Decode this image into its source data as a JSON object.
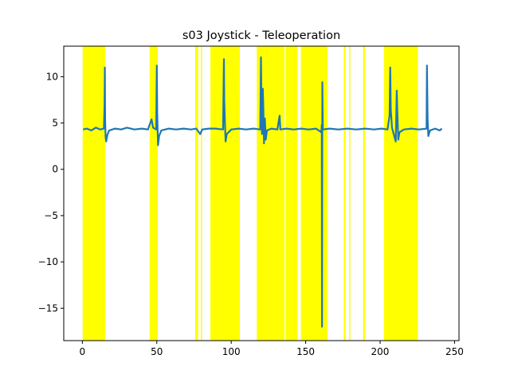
{
  "chart_data": {
    "type": "line",
    "title": "s03 Joystick - Teleoperation",
    "xlabel": "",
    "ylabel": "",
    "xlim": [
      -12.5,
      253
    ],
    "ylim": [
      -18.5,
      13.3
    ],
    "x_ticks": [
      0,
      50,
      100,
      150,
      200,
      250
    ],
    "x_tick_labels": [
      "0",
      "50",
      "100",
      "150",
      "200",
      "250"
    ],
    "y_ticks": [
      10,
      5,
      0,
      -5,
      -10,
      -15
    ],
    "y_tick_labels": [
      "10",
      "5",
      "0",
      "−10",
      "−15"
    ],
    "y_tick_labels_full": [
      "10",
      "5",
      "0",
      "−5",
      "−10",
      "−15"
    ],
    "grid": false,
    "highlight_color": "#ffff00",
    "line_color": "#1f77b4",
    "highlighted_intervals": [
      [
        0.2,
        15.3
      ],
      [
        45.2,
        50.6
      ],
      [
        75.8,
        77.8
      ],
      [
        79.6,
        80.4
      ],
      [
        86.0,
        105.8
      ],
      [
        117.2,
        135.8
      ],
      [
        136.6,
        144.6
      ],
      [
        146.8,
        164.6
      ],
      [
        175.6,
        176.8
      ],
      [
        179.2,
        180.0
      ],
      [
        188.6,
        189.8
      ],
      [
        202.6,
        225.4
      ]
    ],
    "series": [
      {
        "values": [
          [
            0.5,
            4.3
          ],
          [
            3,
            4.4
          ],
          [
            6,
            4.2
          ],
          [
            9,
            4.5
          ],
          [
            12,
            4.3
          ],
          [
            14.5,
            4.4
          ],
          [
            14.9,
            7.0
          ],
          [
            15.1,
            11.0
          ],
          [
            15.3,
            5.5
          ],
          [
            15.6,
            3.5
          ],
          [
            16.0,
            3.0
          ],
          [
            16.8,
            3.7
          ],
          [
            18,
            4.2
          ],
          [
            22,
            4.4
          ],
          [
            26,
            4.3
          ],
          [
            30,
            4.5
          ],
          [
            35,
            4.3
          ],
          [
            40,
            4.4
          ],
          [
            44,
            4.3
          ],
          [
            46.5,
            5.4
          ],
          [
            47.5,
            4.5
          ],
          [
            49.6,
            4.3
          ],
          [
            50.0,
            11.2
          ],
          [
            50.3,
            6.0
          ],
          [
            50.8,
            2.6
          ],
          [
            51.6,
            3.6
          ],
          [
            53,
            4.2
          ],
          [
            58,
            4.4
          ],
          [
            63,
            4.3
          ],
          [
            68,
            4.4
          ],
          [
            73,
            4.3
          ],
          [
            76.5,
            4.4
          ],
          [
            79.2,
            3.8
          ],
          [
            80.5,
            4.3
          ],
          [
            85,
            4.4
          ],
          [
            89.5,
            4.4
          ],
          [
            94.5,
            4.3
          ],
          [
            94.9,
            9.0
          ],
          [
            95.1,
            11.9
          ],
          [
            95.3,
            7.5
          ],
          [
            95.8,
            5.0
          ],
          [
            96.2,
            3.0
          ],
          [
            97,
            3.8
          ],
          [
            100,
            4.3
          ],
          [
            105,
            4.4
          ],
          [
            110,
            4.3
          ],
          [
            115,
            4.4
          ],
          [
            119.5,
            4.3
          ],
          [
            120.0,
            12.1
          ],
          [
            120.3,
            7.0
          ],
          [
            120.7,
            3.8
          ],
          [
            121.2,
            8.7
          ],
          [
            121.6,
            6.5
          ],
          [
            122.0,
            2.8
          ],
          [
            122.6,
            5.5
          ],
          [
            123.2,
            3.2
          ],
          [
            124,
            4.2
          ],
          [
            127,
            4.4
          ],
          [
            131,
            4.3
          ],
          [
            132.5,
            5.8
          ],
          [
            133,
            4.3
          ],
          [
            137,
            4.4
          ],
          [
            142,
            4.3
          ],
          [
            147,
            4.4
          ],
          [
            152,
            4.3
          ],
          [
            157,
            4.4
          ],
          [
            160.5,
            4.0
          ],
          [
            160.8,
            4.8
          ],
          [
            161.0,
            -17.0
          ],
          [
            161.2,
            9.4
          ],
          [
            161.5,
            4.3
          ],
          [
            166,
            4.4
          ],
          [
            172,
            4.3
          ],
          [
            178,
            4.4
          ],
          [
            184,
            4.3
          ],
          [
            190,
            4.4
          ],
          [
            196,
            4.3
          ],
          [
            201,
            4.4
          ],
          [
            205,
            4.3
          ],
          [
            206.4,
            5.8
          ],
          [
            206.8,
            11.0
          ],
          [
            207.2,
            6.5
          ],
          [
            208,
            4.5
          ],
          [
            210.5,
            3.0
          ],
          [
            211.2,
            8.5
          ],
          [
            211.6,
            6.0
          ],
          [
            212.2,
            3.2
          ],
          [
            213,
            4.0
          ],
          [
            216,
            4.3
          ],
          [
            221,
            4.4
          ],
          [
            226,
            4.3
          ],
          [
            231.2,
            4.4
          ],
          [
            231.5,
            11.2
          ],
          [
            231.9,
            5.5
          ],
          [
            232.4,
            3.6
          ],
          [
            233.5,
            4.2
          ],
          [
            237,
            4.4
          ],
          [
            240,
            4.2
          ],
          [
            241.5,
            4.4
          ]
        ]
      }
    ]
  }
}
